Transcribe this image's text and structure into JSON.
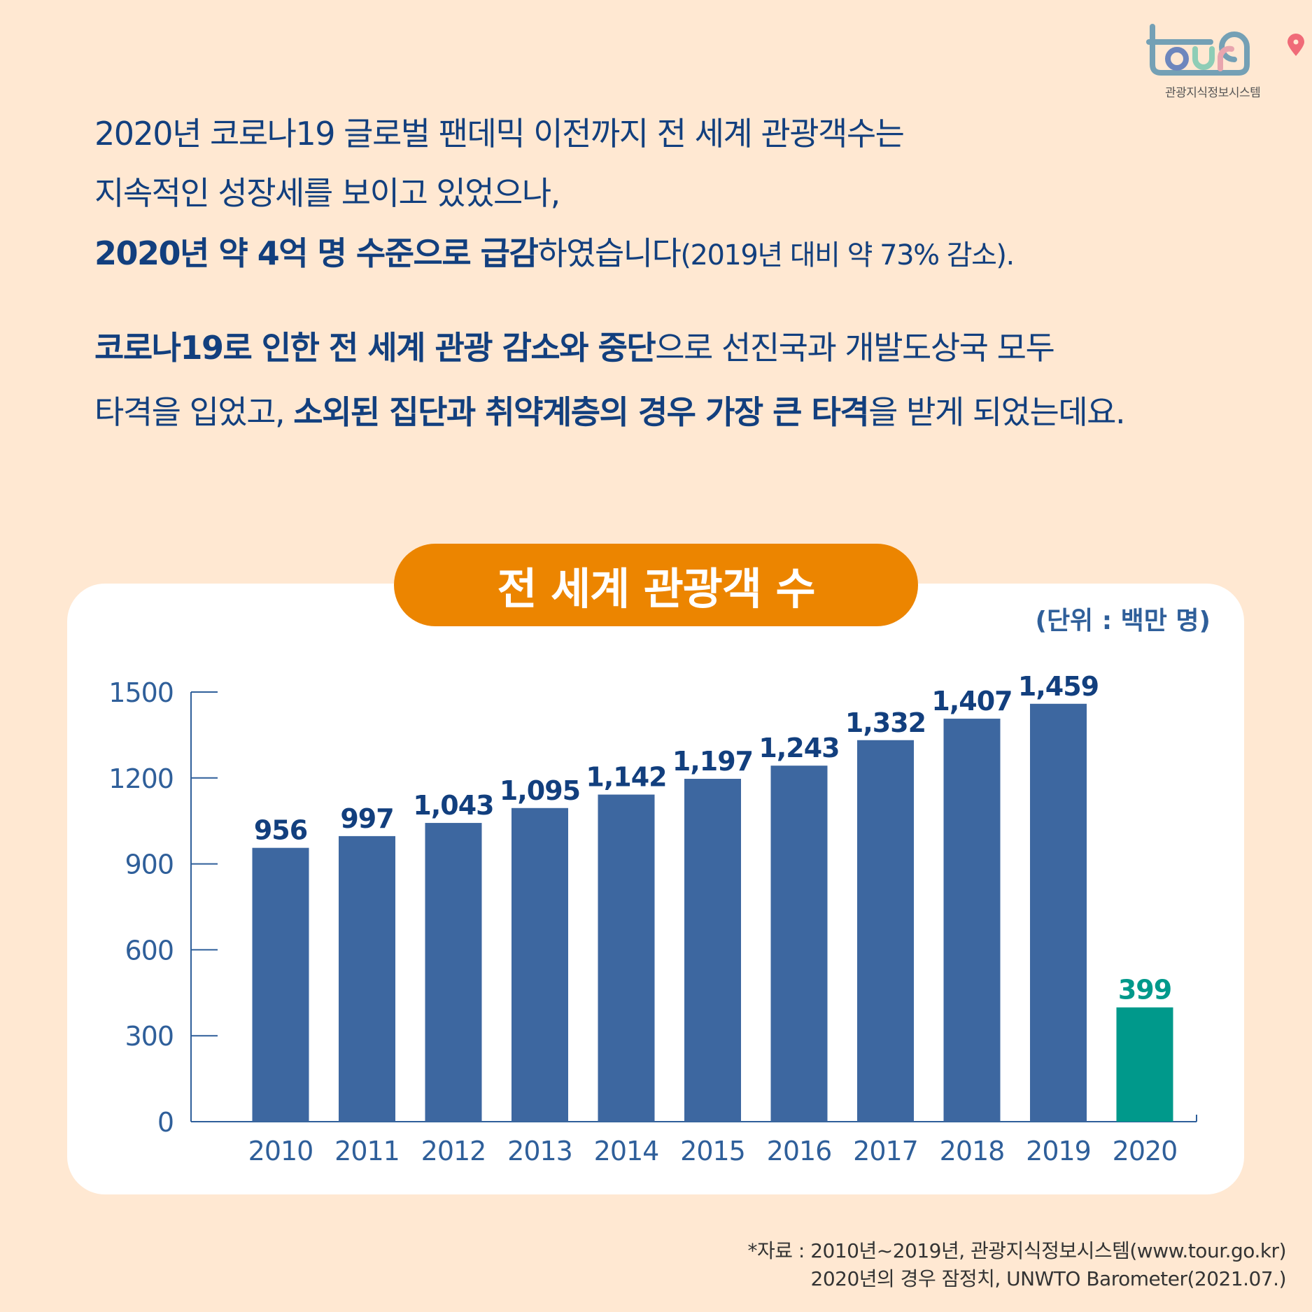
{
  "logo": {
    "wordmark": "tourg",
    "subtitle": "관광지식정보시스템",
    "colors": {
      "frame": "#74A0B5",
      "o": "#6D86BD",
      "u": "#8ECDB6",
      "r": "#E8A5AE",
      "pin": "#F06B78"
    }
  },
  "intro": {
    "line1": "2020년 코로나19 글로벌 팬데믹 이전까지 전 세계 관광객수는",
    "line2": "지속적인 성장세를 보이고 있었으나,",
    "line3": {
      "bold": "2020년 약 4억 명 수준으로 급감",
      "normal": "하였습니다",
      "small": "(2019년 대비 약 73% 감소)."
    },
    "line4": {
      "bold": "코로나19로 인한 전 세계 관광 감소와 중단",
      "normal": "으로 선진국과 개발도상국 모두"
    },
    "line5": {
      "normal1": "타격을 입었고, ",
      "bold": "소외된 집단과 취약계층의 경우 가장 큰 타격",
      "normal2": "을 받게 되었는데요."
    }
  },
  "chart_data": {
    "type": "bar",
    "title": "전 세계 관광객 수",
    "unit_label": "(단위 : 백만 명)",
    "categories": [
      "2010",
      "2011",
      "2012",
      "2013",
      "2014",
      "2015",
      "2016",
      "2017",
      "2018",
      "2019",
      "2020"
    ],
    "values": [
      956,
      997,
      1043,
      1095,
      1142,
      1197,
      1243,
      1332,
      1407,
      1459,
      399
    ],
    "data_labels": [
      "956",
      "997",
      "1,043",
      "1,095",
      "1,142",
      "1,197",
      "1,243",
      "1,332",
      "1,407",
      "1,459",
      "399"
    ],
    "yticks": [
      "0",
      "300",
      "600",
      "900",
      "1200",
      "1500"
    ],
    "ylim": [
      0,
      1500
    ],
    "grid": false,
    "colors": {
      "bar": "#3D67A0",
      "highlight": "#00998B",
      "label": "#123F7E",
      "highlight_label": "#00998B",
      "axis": "#2F5F9A"
    }
  },
  "footnote": {
    "line1": "*자료 : 2010년~2019년, 관광지식정보시스템(www.tour.go.kr)",
    "line2": "2020년의 경우 잠정치, UNWTO Barometer(2021.07.)"
  },
  "background": "#FFE8D2"
}
